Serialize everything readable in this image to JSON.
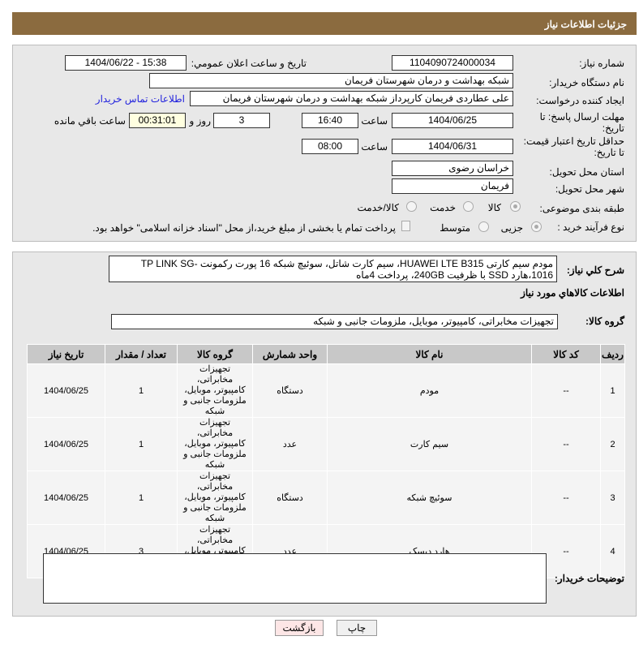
{
  "header": {
    "title": "جزئیات اطلاعات نیاز"
  },
  "form": {
    "need_number_label": "شماره نیاز:",
    "need_number": "1104090724000034",
    "announce_label": "تاریخ و ساعت اعلان عمومي:",
    "announce_value": "1404/06/22 - 15:38",
    "buyer_label": "نام دستگاه خريدار:",
    "buyer_value": "شبکه بهداشت و درمان شهرستان فریمان",
    "creator_label": "ایجاد کننده درخواست:",
    "creator_value": "علی عطاردی فریمان کارپرداز شبکه بهداشت و درمان شهرستان فریمان",
    "contact_link": "اطلاعات تماس خریدار",
    "deadline_label": "مهلت ارسال پاسخ: تا تاریخ:",
    "deadline_date": "1404/06/25",
    "time_label": "ساعت",
    "deadline_time": "16:40",
    "days": "3",
    "days_label": "روز و",
    "remaining": "00:31:01",
    "remaining_label": "ساعت باقي مانده",
    "validity_label": "حداقل تاریخ اعتبار قیمت: تا تاریخ:",
    "validity_date": "1404/06/31",
    "validity_time": "08:00",
    "province_label": "استان محل تحویل:",
    "province": "خراسان رضوی",
    "city_label": "شهر محل تحویل:",
    "city": "فریمان",
    "category_label": "طبقه بندی موضوعی:",
    "category_options": [
      "کالا",
      "خدمت",
      "کالا/خدمت"
    ],
    "category_selected": "کالا",
    "process_label": "نوع فرآيند خريد :",
    "process_options": [
      "جزیی",
      "متوسط"
    ],
    "process_selected": "جزیی",
    "payment_note": "پرداخت تمام یا بخشی از مبلغ خرید،از محل \"اسناد خزانه اسلامی\" خواهد بود."
  },
  "details": {
    "desc_label": "شرح کلي نياز:",
    "desc": "مودم سیم کارتی HUAWEI LTE B315، سیم کارت شاتل، سوئیچ شبکه 16 پورت رکمونت TP LINK SG-1016،هارد SSD با ظرفیت 240GB، پرداخت 4ماه",
    "goods_title": "اطلاعات کالاهاي مورد نياز",
    "group_label": "گروه کالا:",
    "group_value": "تجهیزات مخابراتی، کامپیوتر، موبایل، ملزومات جانبی و شبکه",
    "columns": [
      "رديف",
      "کد کالا",
      "نام کالا",
      "واحد شمارش",
      "گروه کالا",
      "تعداد / مقدار",
      "تاریخ نیاز"
    ],
    "rows": [
      [
        "1",
        "--",
        "مودم",
        "دستگاه",
        "تجهیزات مخابراتی، کامپیوتر، موبایل، ملزومات جانبی و شبکه",
        "1",
        "1404/06/25"
      ],
      [
        "2",
        "--",
        "سیم کارت",
        "عدد",
        "تجهیزات مخابراتی، کامپیوتر، موبایل، ملزومات جانبی و شبکه",
        "1",
        "1404/06/25"
      ],
      [
        "3",
        "--",
        "سوئیچ شبکه",
        "دستگاه",
        "تجهیزات مخابراتی، کامپیوتر، موبایل، ملزومات جانبی و شبکه",
        "1",
        "1404/06/25"
      ],
      [
        "4",
        "--",
        "هارد دیسک",
        "عدد",
        "تجهیزات مخابراتی، کامپیوتر، موبایل، ملزومات جانبی و شبکه",
        "3",
        "1404/06/25"
      ]
    ],
    "buyer_notes_label": "توضیحات خریدار:",
    "buyer_notes": ""
  },
  "buttons": {
    "print": "چاپ",
    "back": "بازگشت"
  }
}
